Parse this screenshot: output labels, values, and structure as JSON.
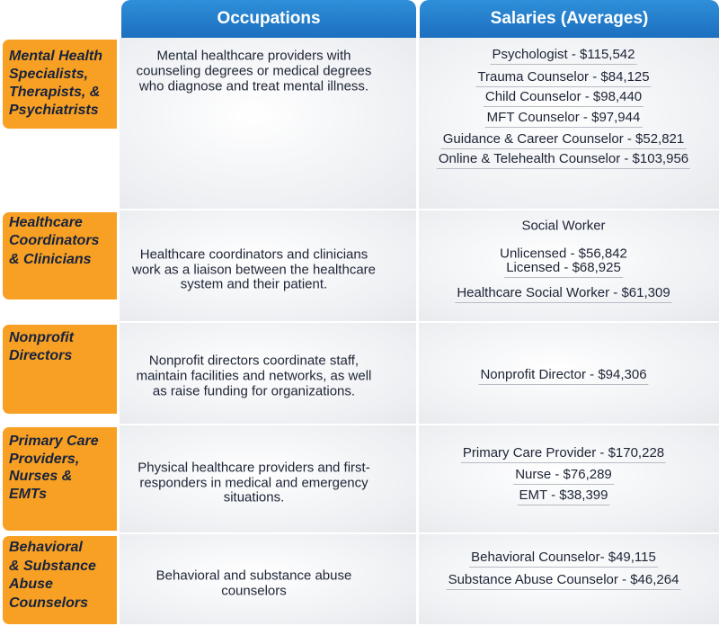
{
  "header": {
    "occupations": "Occupations",
    "salaries": "Salaries (Averages)"
  },
  "rows": [
    {
      "label": [
        "Mental Health",
        "Specialists,",
        "Therapists, &",
        "Psychiatrists"
      ],
      "description": [
        "Mental healthcare providers with",
        "counseling degrees or medical degrees",
        "who diagnose and treat mental illness."
      ],
      "salaries": [
        "Psychologist - $115,542",
        "Trauma Counselor - $84,125",
        "Child Counselor - $98,440",
        "MFT Counselor - $97,944",
        "Guidance & Career Counselor - $52,821",
        "Online & Telehealth Counselor - $103,956"
      ]
    },
    {
      "label": [
        "Healthcare",
        "Coordinators",
        "& Clinicians"
      ],
      "description": [
        "Healthcare coordinators and clinicians",
        "work as a liaison between the healthcare",
        "system and their patient."
      ],
      "salaries": [
        "Social Worker",
        "Unlicensed - $56,842",
        "Licensed  - $68,925",
        "Healthcare Social Worker - $61,309"
      ]
    },
    {
      "label": [
        "Nonprofit",
        "Directors"
      ],
      "description": [
        "Nonprofit directors coordinate staff,",
        "maintain facilities and networks, as well",
        "as raise funding for organizations."
      ],
      "salaries": [
        "Nonprofit Director - $94,306"
      ]
    },
    {
      "label": [
        "Primary Care",
        "Providers,",
        "Nurses &",
        "EMTs"
      ],
      "description": [
        "Physical healthcare providers and first-",
        "responders in medical and emergency",
        "situations."
      ],
      "salaries": [
        "Primary Care Provider - $170,228",
        "Nurse - $76,289",
        "EMT - $38,399"
      ]
    },
    {
      "label": [
        "Behavioral",
        "& Substance",
        "Abuse",
        "Counselors"
      ],
      "description": [
        "Behavioral and substance abuse",
        "counselors"
      ],
      "salaries": [
        "Behavioral Counselor- $49,115",
        "Substance Abuse Counselor - $46,264"
      ]
    }
  ]
}
